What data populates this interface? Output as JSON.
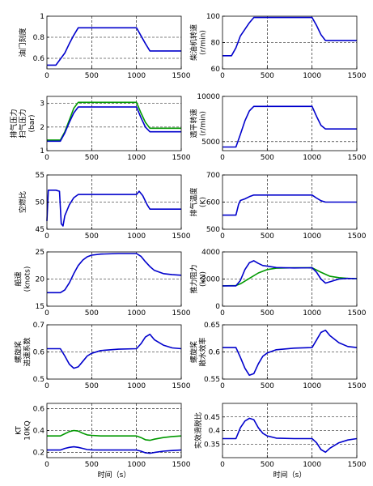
{
  "chart_data": [
    {
      "type": "line",
      "ylabel": "油门刻度",
      "ylim": [
        0.5,
        1.0
      ],
      "yticks": [
        "0.6",
        "0.8",
        "1"
      ],
      "ytick_values": [
        0.6,
        0.8,
        1.0
      ],
      "xticks": [
        "0",
        "500",
        "1000",
        "1500"
      ],
      "xlim": [
        0,
        1500
      ],
      "xlabel": "",
      "grid": true,
      "series": [
        {
          "color": "#0000cc",
          "x": [
            0,
            100,
            200,
            250,
            300,
            350,
            1000,
            1100,
            1150,
            1500
          ],
          "y": [
            0.535,
            0.535,
            0.65,
            0.74,
            0.82,
            0.89,
            0.89,
            0.74,
            0.67,
            0.67
          ]
        }
      ]
    },
    {
      "type": "line",
      "ylabel": "柴油机转速 (r/min)",
      "ylim": [
        60,
        100
      ],
      "yticks": [
        "60",
        "80",
        "100"
      ],
      "ytick_values": [
        60,
        80,
        100
      ],
      "xticks": [
        "0",
        "500",
        "1000",
        "1500"
      ],
      "xlim": [
        0,
        1500
      ],
      "xlabel": "",
      "grid": true,
      "series": [
        {
          "color": "#0000cc",
          "x": [
            0,
            100,
            150,
            200,
            300,
            350,
            1000,
            1050,
            1100,
            1150,
            1500
          ],
          "y": [
            70,
            70,
            76,
            85,
            95,
            99,
            99,
            93,
            86,
            81.5,
            81.5
          ]
        }
      ]
    },
    {
      "type": "line",
      "ylabel": "排气压力 扫气压力 (bar)",
      "ylim": [
        1.0,
        3.3
      ],
      "yticks": [
        "1",
        "2",
        "3"
      ],
      "ytick_values": [
        1,
        2,
        3
      ],
      "xticks": [
        "0",
        "500",
        "1000",
        "1500"
      ],
      "xlim": [
        0,
        1500
      ],
      "xlabel": "",
      "grid": true,
      "series": [
        {
          "color": "#009900",
          "x": [
            0,
            150,
            200,
            250,
            300,
            350,
            1000,
            1050,
            1100,
            1150,
            1500
          ],
          "y": [
            1.45,
            1.45,
            1.8,
            2.3,
            2.8,
            3.05,
            3.05,
            2.6,
            2.2,
            1.95,
            1.95
          ]
        },
        {
          "color": "#0000cc",
          "x": [
            0,
            150,
            200,
            250,
            300,
            350,
            1000,
            1050,
            1100,
            1150,
            1500
          ],
          "y": [
            1.4,
            1.4,
            1.75,
            2.2,
            2.6,
            2.85,
            2.85,
            2.4,
            2.0,
            1.8,
            1.8
          ]
        }
      ]
    },
    {
      "type": "line",
      "ylabel": "透平转速 (r/min)",
      "ylim": [
        4000,
        10000
      ],
      "yticks": [
        "5000",
        "10000"
      ],
      "ytick_values": [
        5000,
        10000
      ],
      "xticks": [
        "0",
        "500",
        "1000",
        "1500"
      ],
      "xlim": [
        0,
        1500
      ],
      "xlabel": "",
      "grid": true,
      "series": [
        {
          "color": "#0000cc",
          "x": [
            0,
            150,
            200,
            250,
            300,
            350,
            1000,
            1050,
            1100,
            1150,
            1500
          ],
          "y": [
            4400,
            4400,
            5800,
            7300,
            8400,
            8900,
            8900,
            7800,
            6800,
            6400,
            6400
          ]
        }
      ]
    },
    {
      "type": "line",
      "ylabel": "空燃比",
      "ylim": [
        45,
        55
      ],
      "yticks": [
        "45",
        "50",
        "55"
      ],
      "ytick_values": [
        45,
        50,
        55
      ],
      "xticks": [
        "0",
        "500",
        "1000",
        "1500"
      ],
      "xlim": [
        0,
        1500
      ],
      "xlabel": "",
      "grid": true,
      "series": [
        {
          "color": "#0000cc",
          "x": [
            0,
            15,
            30,
            100,
            140,
            160,
            180,
            200,
            250,
            300,
            350,
            1000,
            1030,
            1070,
            1120,
            1150,
            1500
          ],
          "y": [
            46.5,
            52.2,
            52.2,
            52.2,
            52.0,
            46.0,
            45.6,
            47.5,
            49.5,
            50.8,
            51.4,
            51.4,
            52.0,
            51.2,
            49.5,
            48.7,
            48.7
          ]
        }
      ]
    },
    {
      "type": "line",
      "ylabel": "排气温度 (K)",
      "ylim": [
        500,
        700
      ],
      "yticks": [
        "500",
        "600",
        "700"
      ],
      "ytick_values": [
        500,
        600,
        700
      ],
      "xticks": [
        "0",
        "500",
        "1000",
        "1500"
      ],
      "xlim": [
        0,
        1500
      ],
      "xlabel": "",
      "grid": true,
      "series": [
        {
          "color": "#0000cc",
          "x": [
            0,
            150,
            180,
            200,
            250,
            300,
            350,
            1000,
            1050,
            1100,
            1150,
            1500
          ],
          "y": [
            552,
            552,
            592,
            606,
            612,
            620,
            626,
            626,
            615,
            605,
            600,
            600
          ]
        }
      ]
    },
    {
      "type": "line",
      "ylabel": "船速 (knots)",
      "ylim": [
        15,
        25
      ],
      "yticks": [
        "15",
        "20",
        "25"
      ],
      "ytick_values": [
        15,
        20,
        25
      ],
      "xticks": [
        "0",
        "500",
        "1000",
        "1500"
      ],
      "xlim": [
        0,
        1500
      ],
      "xlabel": "",
      "grid": true,
      "series": [
        {
          "color": "#0000cc",
          "x": [
            0,
            150,
            200,
            250,
            300,
            350,
            400,
            450,
            500,
            600,
            800,
            1000,
            1050,
            1100,
            1150,
            1200,
            1300,
            1400,
            1500
          ],
          "y": [
            17.5,
            17.5,
            18.0,
            19.3,
            21.0,
            22.5,
            23.5,
            24.1,
            24.4,
            24.6,
            24.7,
            24.7,
            24.2,
            23.2,
            22.3,
            21.6,
            21.0,
            20.8,
            20.7
          ]
        }
      ]
    },
    {
      "type": "line",
      "ylabel": "推力阻力 (kN)",
      "ylim": [
        0,
        4000
      ],
      "yticks": [
        "0",
        "2000",
        "4000"
      ],
      "ytick_values": [
        0,
        2000,
        4000
      ],
      "xticks": [
        "0",
        "500",
        "1000",
        "1500"
      ],
      "xlim": [
        0,
        1500
      ],
      "xlabel": "",
      "grid": true,
      "series": [
        {
          "color": "#009900",
          "x": [
            0,
            150,
            200,
            300,
            400,
            500,
            600,
            800,
            1000,
            1100,
            1200,
            1300,
            1400,
            1500
          ],
          "y": [
            1500,
            1520,
            1650,
            2050,
            2450,
            2700,
            2800,
            2830,
            2830,
            2500,
            2200,
            2100,
            2050,
            2030
          ]
        },
        {
          "color": "#0000cc",
          "x": [
            0,
            150,
            200,
            250,
            300,
            350,
            400,
            450,
            500,
            600,
            800,
            1000,
            1050,
            1100,
            1150,
            1200,
            1300,
            1400,
            1500
          ],
          "y": [
            1500,
            1500,
            1900,
            2700,
            3200,
            3350,
            3150,
            3000,
            2950,
            2850,
            2820,
            2830,
            2500,
            2000,
            1700,
            1800,
            2000,
            2050,
            2030
          ]
        }
      ]
    },
    {
      "type": "line",
      "ylabel": "螺旋桨 进速系数",
      "ylim": [
        0.5,
        0.7
      ],
      "yticks": [
        "0.5",
        "0.6",
        "0.7"
      ],
      "ytick_values": [
        0.5,
        0.6,
        0.7
      ],
      "xticks": [
        "0",
        "500",
        "1000",
        "1500"
      ],
      "xlim": [
        0,
        1500
      ],
      "xlabel": "",
      "grid": true,
      "series": [
        {
          "color": "#0000cc",
          "x": [
            0,
            150,
            200,
            250,
            300,
            350,
            400,
            450,
            500,
            600,
            800,
            1000,
            1050,
            1100,
            1150,
            1200,
            1300,
            1400,
            1500
          ],
          "y": [
            0.612,
            0.612,
            0.585,
            0.555,
            0.54,
            0.545,
            0.565,
            0.585,
            0.595,
            0.605,
            0.61,
            0.612,
            0.63,
            0.655,
            0.665,
            0.645,
            0.625,
            0.615,
            0.612
          ]
        }
      ]
    },
    {
      "type": "line",
      "ylabel": "螺旋桨 敞水效率",
      "ylim": [
        0.55,
        0.65
      ],
      "yticks": [
        "0.55",
        "0.6",
        "0.65"
      ],
      "ytick_values": [
        0.55,
        0.6,
        0.65
      ],
      "xticks": [
        "0",
        "500",
        "1000",
        "1500"
      ],
      "xlim": [
        0,
        1500
      ],
      "xlabel": "",
      "grid": true,
      "series": [
        {
          "color": "#0000cc",
          "x": [
            0,
            150,
            200,
            250,
            300,
            350,
            400,
            450,
            500,
            600,
            800,
            1000,
            1050,
            1100,
            1150,
            1200,
            1300,
            1400,
            1500
          ],
          "y": [
            0.608,
            0.608,
            0.59,
            0.57,
            0.557,
            0.56,
            0.578,
            0.592,
            0.598,
            0.604,
            0.607,
            0.608,
            0.622,
            0.636,
            0.64,
            0.63,
            0.617,
            0.61,
            0.608
          ]
        }
      ]
    },
    {
      "type": "line",
      "ylabel": "KT 10KQ",
      "ylim": [
        0.15,
        0.65
      ],
      "yticks": [
        "0.2",
        "0.4",
        "0.6"
      ],
      "ytick_values": [
        0.2,
        0.4,
        0.6
      ],
      "xticks": [
        "0",
        "500",
        "1000",
        "1500"
      ],
      "xlim": [
        0,
        1500
      ],
      "xlabel": "时间（s）",
      "grid": true,
      "series": [
        {
          "color": "#009900",
          "x": [
            0,
            150,
            200,
            250,
            300,
            350,
            400,
            450,
            500,
            600,
            800,
            1000,
            1050,
            1100,
            1150,
            1200,
            1300,
            1400,
            1500
          ],
          "y": [
            0.35,
            0.35,
            0.37,
            0.39,
            0.4,
            0.395,
            0.375,
            0.36,
            0.355,
            0.35,
            0.35,
            0.35,
            0.335,
            0.315,
            0.31,
            0.32,
            0.335,
            0.345,
            0.35
          ]
        },
        {
          "color": "#0000cc",
          "x": [
            0,
            150,
            200,
            250,
            300,
            350,
            400,
            450,
            500,
            600,
            800,
            1000,
            1050,
            1100,
            1150,
            1200,
            1300,
            1400,
            1500
          ],
          "y": [
            0.22,
            0.22,
            0.235,
            0.245,
            0.25,
            0.245,
            0.235,
            0.225,
            0.222,
            0.22,
            0.22,
            0.22,
            0.21,
            0.195,
            0.19,
            0.198,
            0.21,
            0.216,
            0.22
          ]
        }
      ]
    },
    {
      "type": "line",
      "ylabel": "实效滑脱比",
      "ylim": [
        0.3,
        0.5
      ],
      "yticks": [
        "0.35",
        "0.4",
        "0.45"
      ],
      "ytick_values": [
        0.35,
        0.4,
        0.45
      ],
      "xticks": [
        "0",
        "500",
        "1000",
        "1500"
      ],
      "xlim": [
        0,
        1500
      ],
      "xlabel": "时间（s）",
      "grid": true,
      "series": [
        {
          "color": "#0000cc",
          "x": [
            0,
            150,
            200,
            250,
            300,
            350,
            400,
            450,
            500,
            600,
            800,
            1000,
            1050,
            1100,
            1150,
            1200,
            1300,
            1400,
            1500
          ],
          "y": [
            0.37,
            0.37,
            0.41,
            0.435,
            0.445,
            0.44,
            0.41,
            0.39,
            0.38,
            0.372,
            0.37,
            0.37,
            0.355,
            0.33,
            0.32,
            0.335,
            0.355,
            0.365,
            0.37
          ]
        }
      ]
    }
  ]
}
